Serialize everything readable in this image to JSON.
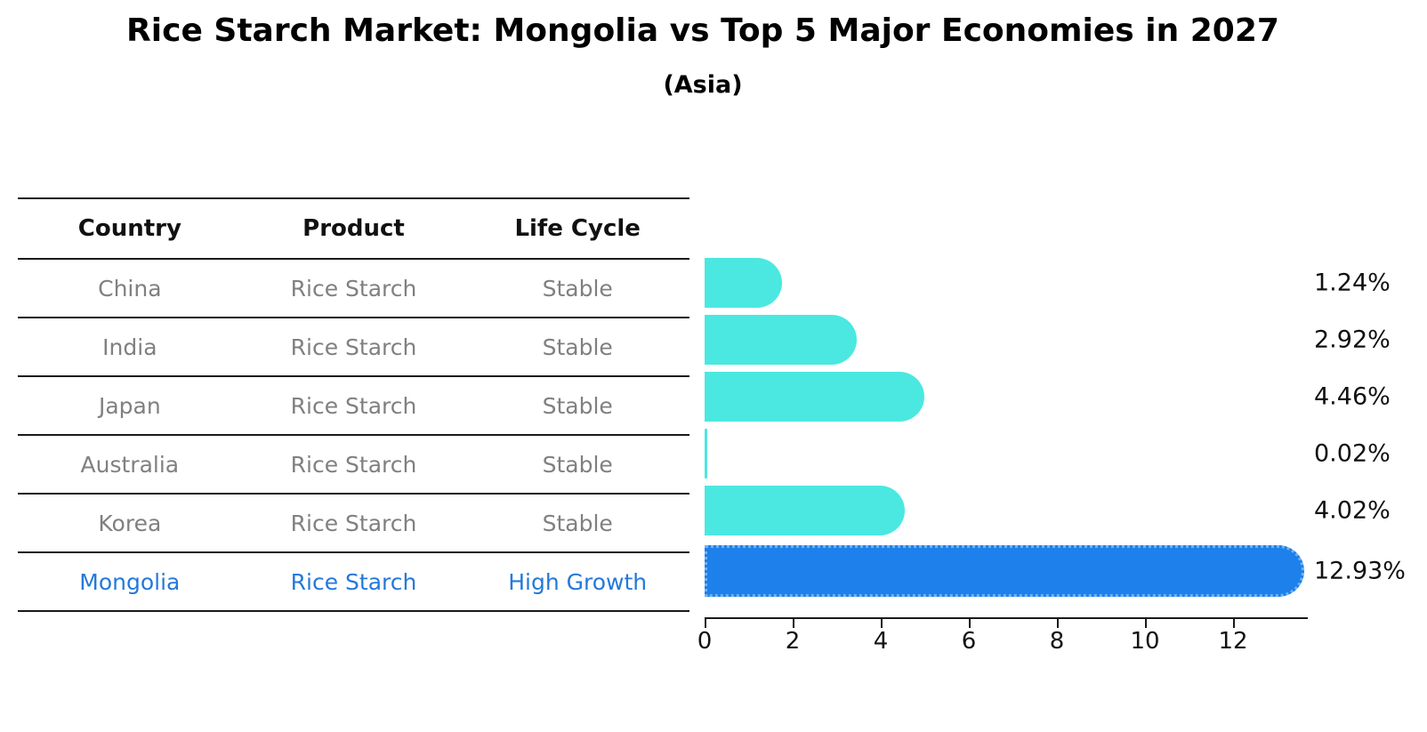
{
  "title": "Rice Starch Market: Mongolia vs Top 5 Major Economies in 2027",
  "subtitle": "(Asia)",
  "table": {
    "headers": [
      "Country",
      "Product",
      "Life Cycle"
    ],
    "rows": [
      {
        "country": "China",
        "product": "Rice Starch",
        "life_cycle": "Stable",
        "highlight": false
      },
      {
        "country": "India",
        "product": "Rice Starch",
        "life_cycle": "Stable",
        "highlight": false
      },
      {
        "country": "Japan",
        "product": "Rice Starch",
        "life_cycle": "Stable",
        "highlight": false
      },
      {
        "country": "Australia",
        "product": "Rice Starch",
        "life_cycle": "Stable",
        "highlight": false
      },
      {
        "country": "Korea",
        "product": "Rice Starch",
        "life_cycle": "Stable",
        "highlight": false
      },
      {
        "country": "Mongolia",
        "product": "Rice Starch",
        "life_cycle": "High Growth",
        "highlight": true
      }
    ]
  },
  "chart_data": {
    "type": "bar",
    "orientation": "horizontal",
    "categories": [
      "China",
      "India",
      "Japan",
      "Australia",
      "Korea",
      "Mongolia"
    ],
    "values": [
      1.24,
      2.92,
      4.46,
      0.02,
      4.02,
      12.93
    ],
    "value_labels": [
      "1.24%",
      "2.92%",
      "4.46%",
      "0.02%",
      "4.02%",
      "12.93%"
    ],
    "highlight_index": 5,
    "xticks": [
      0,
      2,
      4,
      6,
      8,
      10,
      12
    ],
    "xlim": [
      0,
      13.6
    ],
    "grid": false,
    "legend": "none",
    "title": "Rice Starch Market: Mongolia vs Top 5 Major Economies in 2027",
    "subtitle": "(Asia)",
    "xlabel": "",
    "ylabel": ""
  },
  "colors": {
    "bar": "#4ae8e1",
    "highlight_bar": "#1e80eb",
    "highlight_text": "#2479db",
    "table_text": "#808080",
    "header_text": "#111111",
    "line": "#1a1a1a",
    "background": "#ffffff"
  }
}
